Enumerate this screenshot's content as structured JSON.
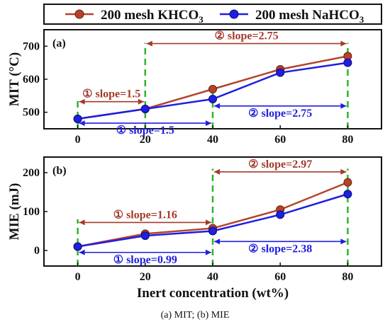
{
  "figure": {
    "caption": "(a) MIT; (b) MIE",
    "legend": [
      {
        "label": "200 mesh KHCO",
        "subscript": "3",
        "color": "#b5432a"
      },
      {
        "label": "200 mesh NaHCO",
        "subscript": "3",
        "color": "#1f1fe0"
      }
    ],
    "colors": {
      "khco3": "#b5432a",
      "nahco3": "#1f1fe0",
      "guide": "#2db52d",
      "arrow_red": "#a33a2a",
      "arrow_blue": "#1f1fe0"
    }
  },
  "chart_data": [
    {
      "type": "line",
      "panel_label": "(a)",
      "ylabel": "MIT (°C)",
      "x": [
        0,
        20,
        40,
        60,
        80
      ],
      "x_tick_labels": [
        "0",
        "20",
        "40",
        "60",
        "80"
      ],
      "xlim": [
        -10,
        90
      ],
      "ylim": [
        450,
        750
      ],
      "y_ticks": [
        500,
        600,
        700
      ],
      "series": [
        {
          "name": "200 mesh KHCO3",
          "values": [
            480,
            510,
            570,
            630,
            670
          ]
        },
        {
          "name": "200 mesh NaHCO3",
          "values": [
            480,
            510,
            540,
            620,
            650
          ]
        }
      ],
      "annotations": [
        {
          "text": "① slope=1.5",
          "series": "200 mesh KHCO3",
          "x_range": [
            0,
            20
          ]
        },
        {
          "text": "② slope=2.75",
          "series": "200 mesh KHCO3",
          "x_range": [
            20,
            80
          ]
        },
        {
          "text": "① slope=1.5",
          "series": "200 mesh NaHCO3",
          "x_range": [
            0,
            40
          ]
        },
        {
          "text": "② slope=2.75",
          "series": "200 mesh NaHCO3",
          "x_range": [
            40,
            80
          ]
        }
      ]
    },
    {
      "type": "line",
      "panel_label": "(b)",
      "ylabel": "MIE (mJ)",
      "xlabel": "Inert concentration (wt%)",
      "x": [
        0,
        20,
        40,
        60,
        80
      ],
      "x_tick_labels": [
        "0",
        "20",
        "40",
        "60",
        "80"
      ],
      "xlim": [
        -10,
        90
      ],
      "ylim": [
        -40,
        240
      ],
      "y_ticks": [
        0,
        100,
        200
      ],
      "series": [
        {
          "name": "200 mesh KHCO3",
          "values": [
            10,
            43,
            57,
            105,
            175
          ]
        },
        {
          "name": "200 mesh NaHCO3",
          "values": [
            10,
            38,
            50,
            92,
            145
          ]
        }
      ],
      "annotations": [
        {
          "text": "① slope=1.16",
          "series": "200 mesh KHCO3",
          "x_range": [
            0,
            40
          ]
        },
        {
          "text": "② slope=2.97",
          "series": "200 mesh KHCO3",
          "x_range": [
            40,
            80
          ]
        },
        {
          "text": "① slope=0.99",
          "series": "200 mesh NaHCO3",
          "x_range": [
            0,
            40
          ]
        },
        {
          "text": "② slope=2.38",
          "series": "200 mesh NaHCO3",
          "x_range": [
            40,
            80
          ]
        }
      ]
    }
  ]
}
